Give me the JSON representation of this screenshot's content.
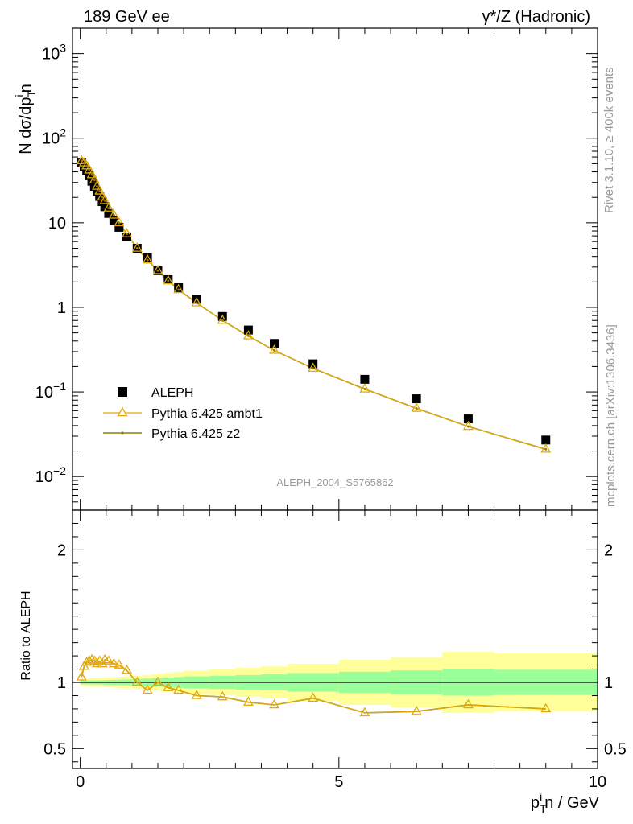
{
  "header": {
    "title_left": "189 GeV ee",
    "title_right": "γ*/Z (Hadronic)"
  },
  "side_text": {
    "rivet": "Rivet 3.1.10, ≥ 400k events",
    "mcplots": "mcplots.cern.ch [arXiv:1306.3436]"
  },
  "watermark": "ALEPH_2004_S5765862",
  "colors": {
    "data": "#000000",
    "ambt1": "#E3A909",
    "z2": "#8C8200",
    "band_inner": "#99FF99",
    "band_outer": "#FFFF99"
  },
  "chart_data": [
    {
      "type": "scatter",
      "ylabel": "N dσ/dp_T^i n",
      "yscale": "log",
      "ylim": [
        0.004,
        2000
      ],
      "xlim": [
        -0.15,
        10.0
      ],
      "yticks": [
        "10^-2",
        "10^-1",
        "1",
        "10",
        "10^2",
        "10^3"
      ],
      "legend_position": "middle-left",
      "series": [
        {
          "name": "ALEPH",
          "marker": "filled-square",
          "x": [
            0.025,
            0.075,
            0.125,
            0.175,
            0.225,
            0.275,
            0.325,
            0.375,
            0.425,
            0.475,
            0.55,
            0.65,
            0.75,
            0.9,
            1.1,
            1.3,
            1.5,
            1.7,
            1.9,
            2.25,
            2.75,
            3.25,
            3.75,
            4.5,
            5.5,
            6.5,
            7.5,
            9.0
          ],
          "y": [
            52,
            46,
            41,
            36,
            31,
            27,
            23.5,
            20.5,
            17.8,
            15.5,
            12.9,
            10.7,
            8.85,
            6.8,
            5.0,
            3.85,
            2.72,
            2.13,
            1.71,
            1.25,
            0.78,
            0.54,
            0.375,
            0.215,
            0.141,
            0.083,
            0.048,
            0.027
          ]
        },
        {
          "name": "Pythia 6.425 ambt1",
          "marker": "open-triangle",
          "x": [
            0.025,
            0.075,
            0.125,
            0.175,
            0.225,
            0.275,
            0.325,
            0.375,
            0.425,
            0.475,
            0.55,
            0.65,
            0.75,
            0.9,
            1.1,
            1.3,
            1.5,
            1.7,
            1.9,
            2.25,
            2.75,
            3.25,
            3.75,
            4.5,
            5.5,
            6.5,
            7.5,
            9.0
          ],
          "y": [
            54,
            51,
            47,
            42,
            37,
            32,
            27,
            23.7,
            20.2,
            18.3,
            14.9,
            12.3,
            10.0,
            7.4,
            5.0,
            3.63,
            2.72,
            2.06,
            1.62,
            1.13,
            0.7,
            0.46,
            0.31,
            0.19,
            0.108,
            0.064,
            0.039,
            0.021
          ]
        },
        {
          "name": "Pythia 6.425 z2",
          "marker": "small-dot",
          "x": [
            0.025,
            0.075,
            0.125,
            0.175,
            0.225,
            0.275,
            0.325,
            0.375,
            0.425,
            0.475,
            0.55,
            0.65,
            0.75,
            0.9,
            1.1,
            1.3,
            1.5,
            1.7,
            1.9,
            2.25,
            2.75,
            3.25,
            3.75,
            4.5,
            5.5,
            6.5,
            7.5,
            9.0
          ],
          "y": [
            54,
            51,
            47,
            42,
            37,
            32,
            27,
            23.7,
            20.2,
            18.3,
            14.9,
            12.3,
            10.0,
            7.4,
            5.0,
            3.63,
            2.72,
            2.06,
            1.62,
            1.13,
            0.7,
            0.46,
            0.31,
            0.19,
            0.108,
            0.064,
            0.039,
            0.021
          ]
        }
      ]
    },
    {
      "type": "line",
      "xlabel": "p_T^i n / GeV",
      "ylabel": "Ratio to ALEPH",
      "ylim": [
        0.35,
        2.3
      ],
      "xlim": [
        -0.15,
        10.0
      ],
      "yticks": [
        "0.5",
        "1",
        "2"
      ],
      "xticks": [
        "0",
        "5",
        "10"
      ],
      "reference_line": 1,
      "band_bins": [
        [
          0,
          0.1
        ],
        [
          0.1,
          0.2
        ],
        [
          0.2,
          0.3
        ],
        [
          0.3,
          0.4
        ],
        [
          0.4,
          0.5
        ],
        [
          0.5,
          0.6
        ],
        [
          0.6,
          0.7
        ],
        [
          0.7,
          0.8
        ],
        [
          0.8,
          1.0
        ],
        [
          1.0,
          1.2
        ],
        [
          1.2,
          1.4
        ],
        [
          1.4,
          1.6
        ],
        [
          1.6,
          1.8
        ],
        [
          1.8,
          2.0
        ],
        [
          2.0,
          2.5
        ],
        [
          2.5,
          3.0
        ],
        [
          3.0,
          3.5
        ],
        [
          3.5,
          4.0
        ],
        [
          4.0,
          5.0
        ],
        [
          5.0,
          6.0
        ],
        [
          6.0,
          7.0
        ],
        [
          7.0,
          8.0
        ],
        [
          8.0,
          10.0
        ]
      ],
      "band_inner": [
        0.015,
        0.015,
        0.016,
        0.016,
        0.017,
        0.018,
        0.019,
        0.02,
        0.022,
        0.025,
        0.028,
        0.032,
        0.036,
        0.04,
        0.045,
        0.05,
        0.055,
        0.06,
        0.07,
        0.08,
        0.09,
        0.1,
        0.095
      ],
      "band_outer": [
        0.03,
        0.03,
        0.032,
        0.033,
        0.035,
        0.037,
        0.039,
        0.041,
        0.045,
        0.05,
        0.056,
        0.063,
        0.07,
        0.078,
        0.088,
        0.098,
        0.11,
        0.12,
        0.14,
        0.17,
        0.19,
        0.23,
        0.22
      ],
      "series": [
        {
          "name": "Pythia 6.425 ambt1",
          "x": [
            0.025,
            0.075,
            0.125,
            0.175,
            0.225,
            0.275,
            0.325,
            0.375,
            0.425,
            0.475,
            0.55,
            0.65,
            0.75,
            0.9,
            1.1,
            1.3,
            1.5,
            1.7,
            1.9,
            2.25,
            2.75,
            3.25,
            3.75,
            4.5,
            5.5,
            6.5,
            7.5,
            9.0
          ],
          "y": [
            1.04,
            1.12,
            1.15,
            1.16,
            1.17,
            1.16,
            1.14,
            1.16,
            1.14,
            1.17,
            1.16,
            1.14,
            1.13,
            1.09,
            1.0,
            0.94,
            1.0,
            0.96,
            0.94,
            0.9,
            0.89,
            0.85,
            0.83,
            0.88,
            0.77,
            0.78,
            0.83,
            0.8
          ]
        },
        {
          "name": "Pythia 6.425 z2",
          "x": [
            0.025,
            0.075,
            0.125,
            0.175,
            0.225,
            0.275,
            0.325,
            0.375,
            0.425,
            0.475,
            0.55,
            0.65,
            0.75,
            0.9,
            1.1,
            1.3,
            1.5,
            1.7,
            1.9,
            2.25,
            2.75,
            3.25,
            3.75,
            4.5,
            5.5,
            6.5,
            7.5,
            9.0
          ],
          "y": [
            1.04,
            1.12,
            1.15,
            1.16,
            1.17,
            1.16,
            1.14,
            1.16,
            1.14,
            1.17,
            1.16,
            1.14,
            1.13,
            1.09,
            1.0,
            0.94,
            1.0,
            0.96,
            0.94,
            0.9,
            0.89,
            0.85,
            0.83,
            0.88,
            0.77,
            0.78,
            0.83,
            0.8
          ]
        }
      ]
    }
  ]
}
